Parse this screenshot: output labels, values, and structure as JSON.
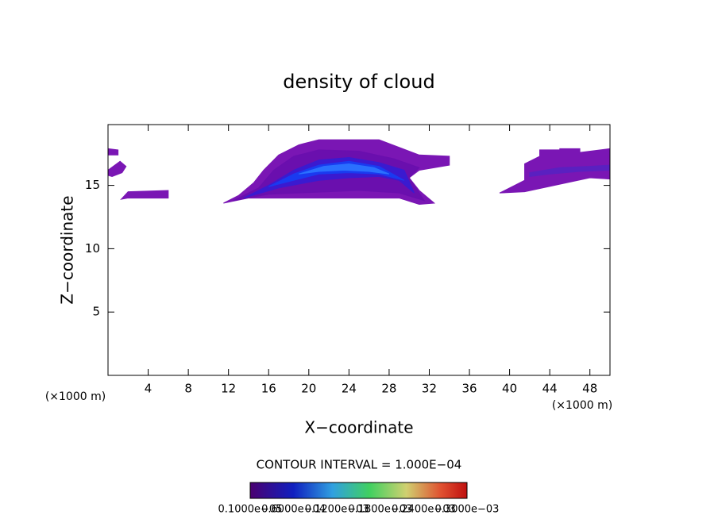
{
  "chart_data": {
    "type": "contour",
    "title": "density of cloud",
    "x_label": "X−coordinate",
    "y_label": "Z−coordinate",
    "x_unit_labels": [
      "(×1000 m)",
      "(×1000 m)"
    ],
    "contour_interval": "CONTOUR INTERVAL = 1.000E−04",
    "xlim": [
      0,
      50
    ],
    "ylim": [
      0,
      19.8
    ],
    "xticks": [
      4,
      8,
      12,
      16,
      20,
      24,
      28,
      32,
      36,
      40,
      44,
      48
    ],
    "yticks": [
      5,
      10,
      15
    ],
    "colorbar_labels": [
      "0.1000e−05",
      "0.6000e−04",
      "0.1200e−03",
      "0.1800e−03",
      "0.2400e−03",
      "0.3000e−03"
    ],
    "contours": [
      {
        "color": "#7a16b4",
        "x": [
          11.5,
          13,
          14.5,
          15.5,
          17,
          19,
          21,
          27,
          29,
          31,
          34,
          34,
          31,
          30,
          31,
          32.5,
          31,
          29,
          14,
          11.5
        ],
        "y": [
          13.6,
          14.2,
          15.2,
          16.2,
          17.4,
          18.2,
          18.6,
          18.6,
          18,
          17.4,
          17.3,
          16.6,
          16.2,
          15.6,
          14.6,
          13.6,
          13.5,
          14,
          14,
          13.6
        ]
      },
      {
        "color": "#6a0fae",
        "x": [
          12.5,
          15,
          16.5,
          18.5,
          21,
          25,
          28.5,
          31,
          30,
          31.5,
          29,
          25,
          16,
          12.5
        ],
        "y": [
          13.8,
          14.8,
          16.2,
          17.3,
          17.8,
          17.7,
          17.1,
          16.4,
          15.6,
          13.8,
          14.4,
          14.6,
          14.3,
          13.8
        ]
      },
      {
        "color": "#3a1ad0",
        "x": [
          13.5,
          16,
          18.5,
          21,
          24,
          27,
          29.5,
          30.5,
          29,
          27,
          24,
          21,
          17,
          13.5
        ],
        "y": [
          14,
          15,
          16.2,
          17,
          17.2,
          16.8,
          16.2,
          14.4,
          15.4,
          15.7,
          15.6,
          15.4,
          14.8,
          14
        ]
      },
      {
        "color": "#1a3af0",
        "x": [
          16,
          18.5,
          21,
          24,
          27,
          29.5,
          27,
          24,
          21,
          18
        ],
        "y": [
          14.9,
          15.9,
          16.6,
          16.9,
          16.5,
          15.4,
          15.9,
          16,
          15.9,
          15.3
        ]
      },
      {
        "color": "#2a70ff",
        "x": [
          19,
          21.5,
          24,
          26.5,
          28,
          26,
          23.5,
          21
        ],
        "y": [
          15.9,
          16.5,
          16.7,
          16.4,
          15.9,
          16.1,
          16.2,
          16.1
        ]
      },
      {
        "color": "#7a16b4",
        "x": [
          0,
          1,
          1,
          0
        ],
        "y": [
          17.9,
          17.8,
          17.4,
          17.4
        ]
      },
      {
        "color": "#7a16b4",
        "x": [
          0,
          1.2,
          1.8,
          1.4,
          0.4,
          0
        ],
        "y": [
          16.2,
          16.9,
          16.5,
          16,
          15.7,
          15.8
        ]
      },
      {
        "color": "#7a16b4",
        "x": [
          1.3,
          2,
          6,
          6,
          2,
          1.3
        ],
        "y": [
          13.9,
          14.5,
          14.6,
          14,
          14,
          13.9
        ]
      },
      {
        "color": "#7a16b4",
        "x": [
          39,
          41.5,
          41.5,
          43,
          43,
          45,
          45,
          47,
          47,
          50,
          50,
          48,
          41.5,
          39
        ],
        "y": [
          14.4,
          15.4,
          16.7,
          17.3,
          17.8,
          17.8,
          17.9,
          17.9,
          17.6,
          17.9,
          15.5,
          15.6,
          14.5,
          14.4
        ]
      },
      {
        "color": "#5a20c0",
        "x": [
          42,
          45,
          48,
          50,
          50,
          47,
          44,
          42
        ],
        "y": [
          16,
          16.4,
          16.5,
          16.6,
          16.2,
          16.1,
          15.9,
          15.7
        ]
      }
    ]
  }
}
